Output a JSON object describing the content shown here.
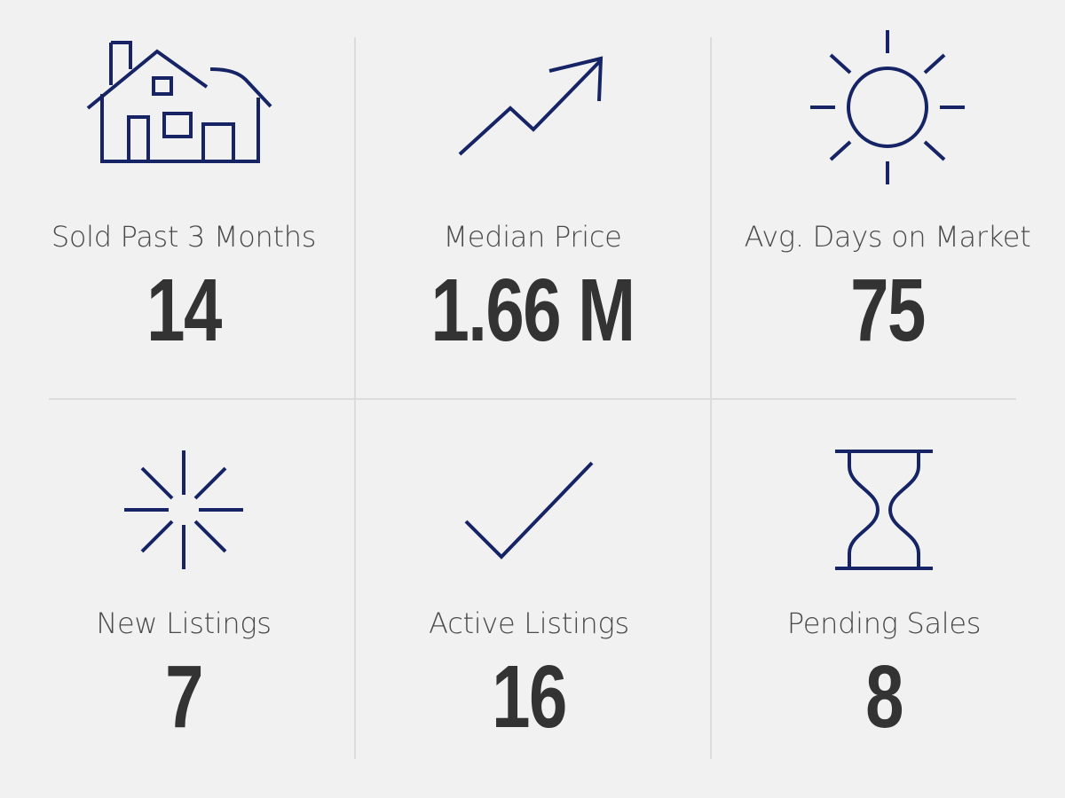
{
  "colors": {
    "background": "#f1f1f2",
    "icon": "#162466",
    "label_text": "#4a4a4a",
    "value_text": "#333333",
    "divider": "#dcdcdc"
  },
  "stats": [
    {
      "icon": "house-icon",
      "label": "Sold Past 3 Months",
      "value": "14"
    },
    {
      "icon": "trend-up-arrow-icon",
      "label": "Median Price",
      "value": "1.66 M"
    },
    {
      "icon": "sun-icon",
      "label": "Avg. Days on Market",
      "value": "75"
    },
    {
      "icon": "sparkle-burst-icon",
      "label": "New Listings",
      "value": "7"
    },
    {
      "icon": "checkmark-icon",
      "label": "Active Listings",
      "value": "16"
    },
    {
      "icon": "hourglass-icon",
      "label": "Pending Sales",
      "value": "8"
    }
  ]
}
